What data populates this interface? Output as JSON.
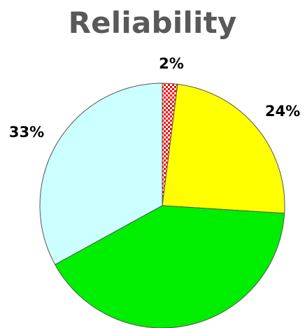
{
  "chart_data": {
    "type": "pie",
    "title": "Reliability",
    "slices": [
      {
        "value": 2,
        "label": "2%",
        "color": "#ff0000",
        "pattern": "checkerboard"
      },
      {
        "value": 24,
        "label": "24%",
        "color": "#ffff00"
      },
      {
        "value": 41,
        "label": "",
        "color": "#00ee00"
      },
      {
        "value": 33,
        "label": "33%",
        "color": "#ccffff"
      }
    ]
  }
}
